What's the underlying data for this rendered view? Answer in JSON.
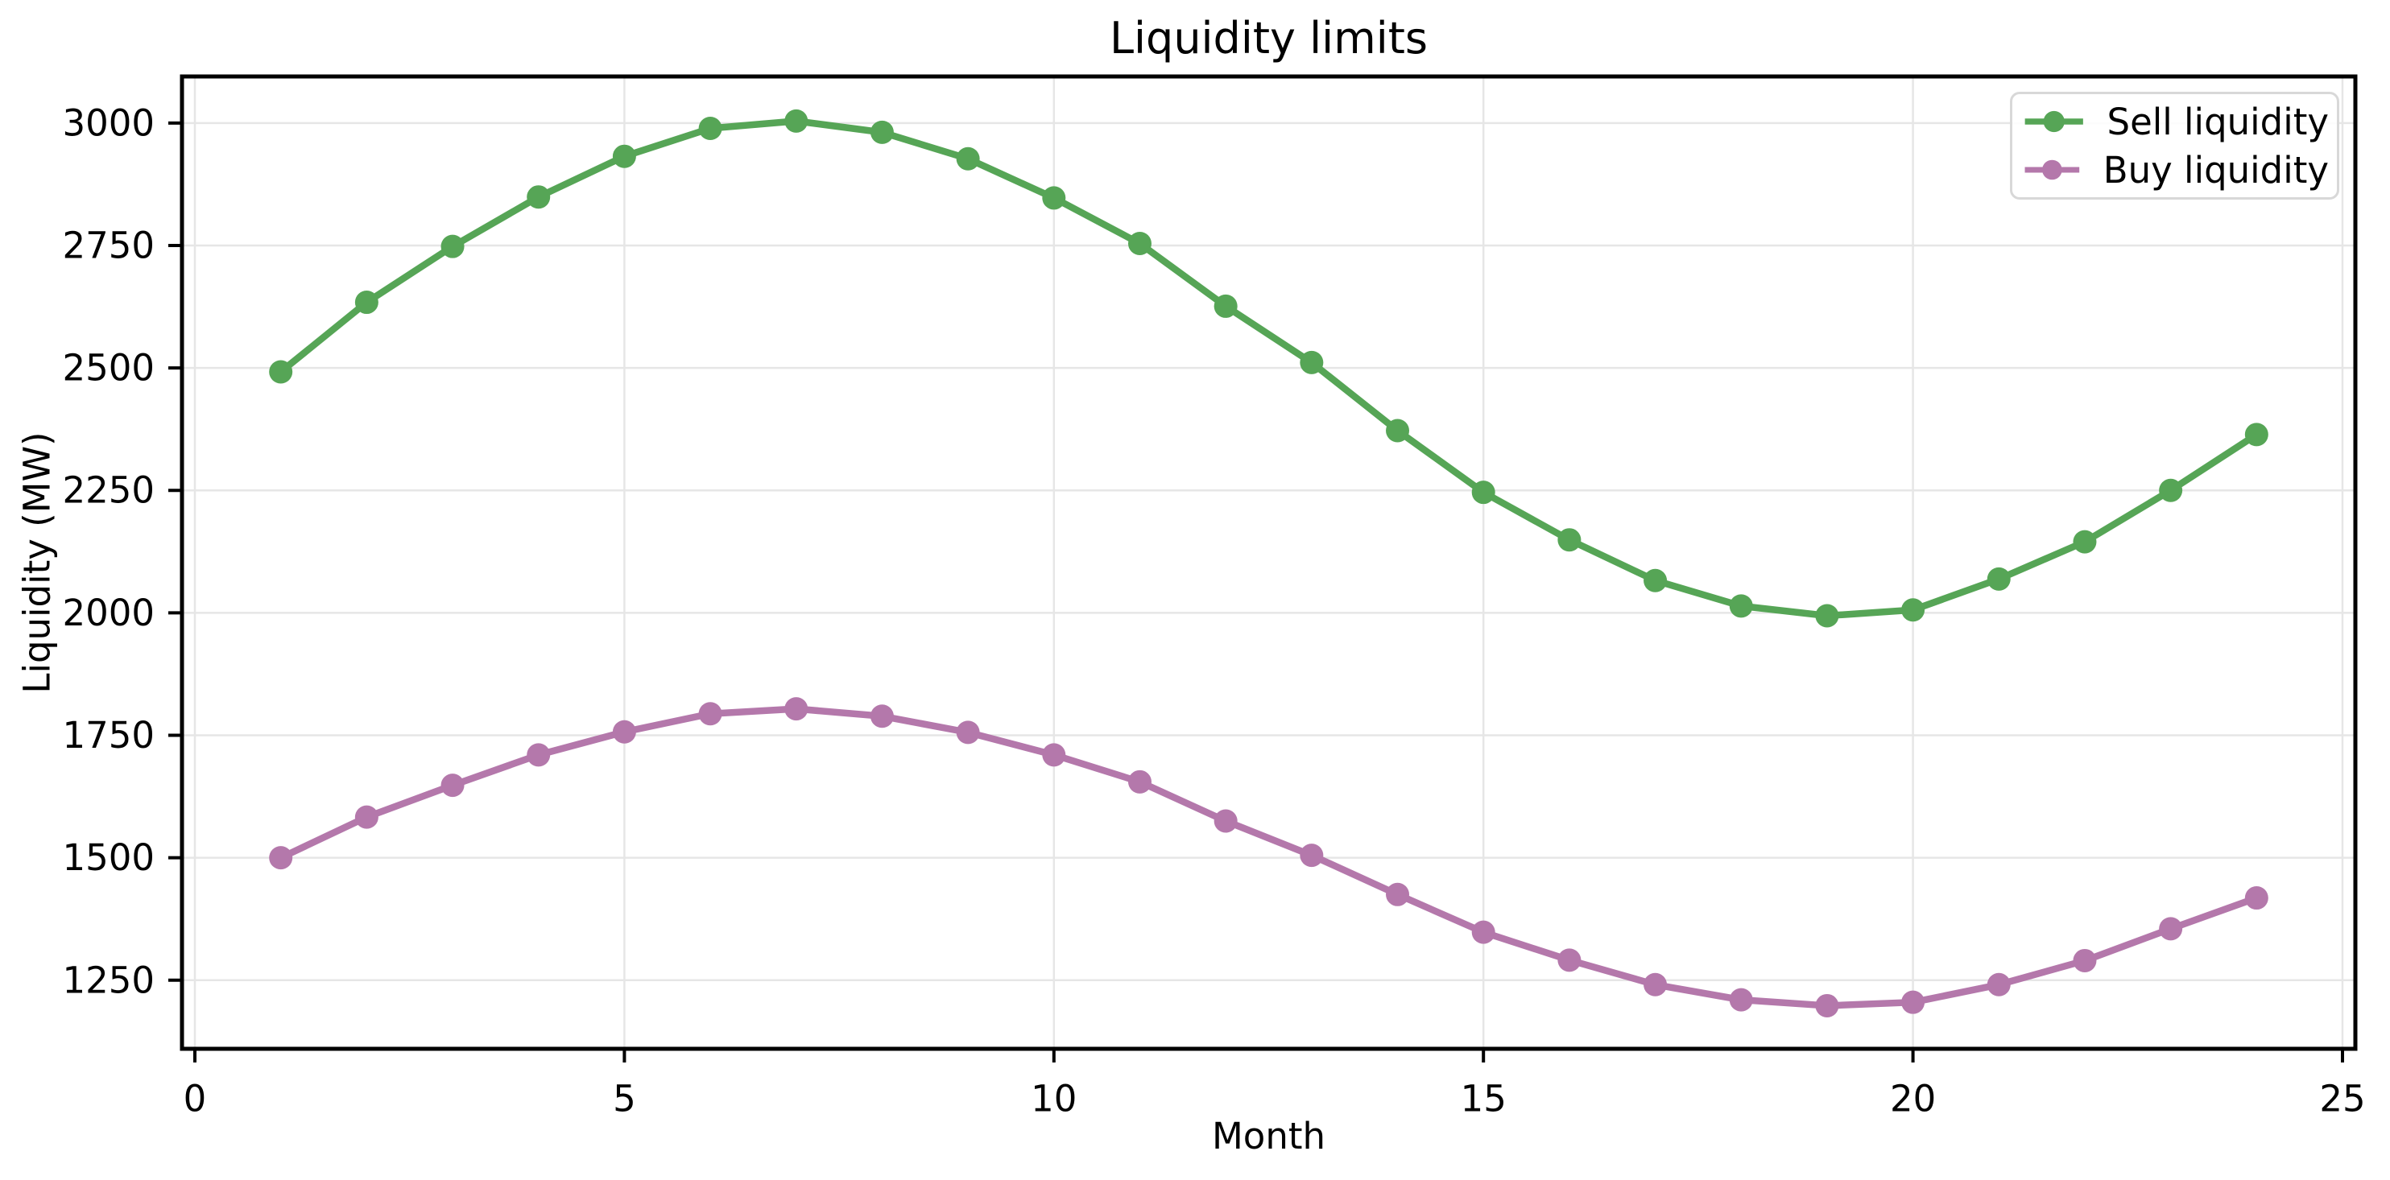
{
  "chart_data": {
    "type": "line",
    "title": "Liquidity limits",
    "xlabel": "Month",
    "ylabel": "Liquidity (MW)",
    "x": [
      1,
      2,
      3,
      4,
      5,
      6,
      7,
      8,
      9,
      10,
      11,
      12,
      13,
      14,
      15,
      16,
      17,
      18,
      19,
      20,
      21,
      22,
      23,
      24
    ],
    "series": [
      {
        "name": "Sell liquidity",
        "color": "#56a556",
        "values": [
          2492,
          2634,
          2748,
          2849,
          2932,
          2989,
          3004,
          2981,
          2927,
          2847,
          2754,
          2626,
          2511,
          2372,
          2246,
          2149,
          2066,
          2014,
          1994,
          2006,
          2069,
          2145,
          2250,
          2364
        ]
      },
      {
        "name": "Buy liquidity",
        "color": "#b478ab",
        "values": [
          1500,
          1583,
          1648,
          1710,
          1757,
          1794,
          1804,
          1789,
          1756,
          1710,
          1655,
          1575,
          1505,
          1425,
          1348,
          1291,
          1241,
          1210,
          1198,
          1205,
          1241,
          1290,
          1355,
          1418
        ]
      }
    ],
    "xlim": [
      -0.15,
      25.15
    ],
    "ylim": [
      1110,
      3095
    ],
    "x_ticks": [
      0,
      5,
      10,
      15,
      20,
      25
    ],
    "y_ticks": [
      1250,
      1500,
      1750,
      2000,
      2250,
      2500,
      2750,
      3000
    ],
    "grid": true,
    "legend_position": "upper right"
  },
  "style_colors": {
    "background": "#ffffff",
    "grid": "#e6e6e6",
    "axis": "#000000",
    "tick_label": "#000000",
    "legend_border": "#d8d8d8"
  }
}
